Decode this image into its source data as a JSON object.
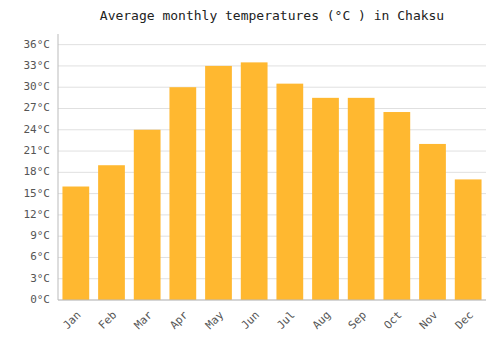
{
  "chart_data": {
    "type": "bar",
    "title": "Average monthly temperatures (°C ) in Chaksu",
    "categories": [
      "Jan",
      "Feb",
      "Mar",
      "Apr",
      "May",
      "Jun",
      "Jul",
      "Aug",
      "Sep",
      "Oct",
      "Nov",
      "Dec"
    ],
    "values": [
      16,
      19,
      24,
      30,
      33,
      33.5,
      30.5,
      28.5,
      28.5,
      26.5,
      22,
      17
    ],
    "color": "#FFB830",
    "ylim": [
      0,
      37.5
    ],
    "yticks": [
      {
        "value": 0,
        "label": "0°C"
      },
      {
        "value": 3,
        "label": "3°C"
      },
      {
        "value": 6,
        "label": "6°C"
      },
      {
        "value": 9,
        "label": "9°C"
      },
      {
        "value": 12,
        "label": "12°C"
      },
      {
        "value": 15,
        "label": "15°C"
      },
      {
        "value": 18,
        "label": "18°C"
      },
      {
        "value": 21,
        "label": "21°C"
      },
      {
        "value": 24,
        "label": "24°C"
      },
      {
        "value": 27,
        "label": "27°C"
      },
      {
        "value": 30,
        "label": "30°C"
      },
      {
        "value": 33,
        "label": "33°C"
      },
      {
        "value": 36,
        "label": "36°C"
      }
    ],
    "grid": true
  }
}
